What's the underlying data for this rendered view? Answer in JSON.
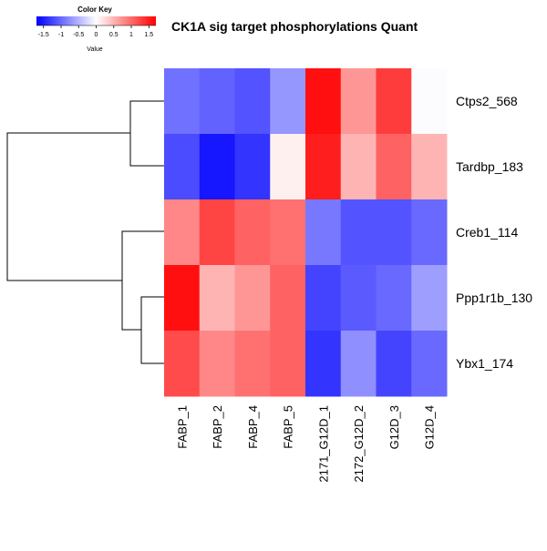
{
  "chart_data": {
    "type": "heatmap",
    "title": "CK1A sig target phosphorylations Quant",
    "rows": [
      "Ctps2_568",
      "Tardbp_183",
      "Creb1_114",
      "Ppp1r1b_130",
      "Ybx1_174"
    ],
    "columns": [
      "FABP_1",
      "FABP_2",
      "FABP_4",
      "FABP_5",
      "2171_G12D_1",
      "2172_G12D_2",
      "G12D_3",
      "G12D_4"
    ],
    "values": [
      [
        -0.95,
        -1.05,
        -1.15,
        -0.7,
        1.6,
        0.7,
        1.3,
        -0.02
      ],
      [
        -1.2,
        -1.55,
        -1.35,
        0.1,
        1.5,
        0.5,
        1.05,
        0.5
      ],
      [
        0.8,
        1.25,
        1.05,
        0.95,
        -0.9,
        -1.15,
        -1.15,
        -1.0
      ],
      [
        1.6,
        0.5,
        0.7,
        1.05,
        -1.25,
        -1.1,
        -1.0,
        -0.65
      ],
      [
        1.2,
        0.8,
        0.95,
        1.05,
        -1.35,
        -0.75,
        -1.25,
        -1.0
      ]
    ],
    "color_key": {
      "title": "Color Key",
      "xlabel": "Value",
      "range": [
        -1.7,
        1.7
      ],
      "ticks": [
        -1.5,
        -1,
        -0.5,
        0,
        0.5,
        1,
        1.5
      ],
      "tick_labels": [
        "-1.5",
        "-1",
        "-0.5",
        "0",
        "0.5",
        "1",
        "1.5"
      ],
      "low_color": "#0000ff",
      "mid_color": "#ffffff",
      "high_color": "#ff0000"
    },
    "row_dendrogram": {
      "merges": [
        [
          0,
          1
        ],
        [
          3,
          4
        ],
        [
          2,
          "ppp1r1b+ybx1"
        ],
        [
          "ctps2+tardbp",
          "creb1+ppp1r1b+ybx1"
        ]
      ]
    }
  }
}
